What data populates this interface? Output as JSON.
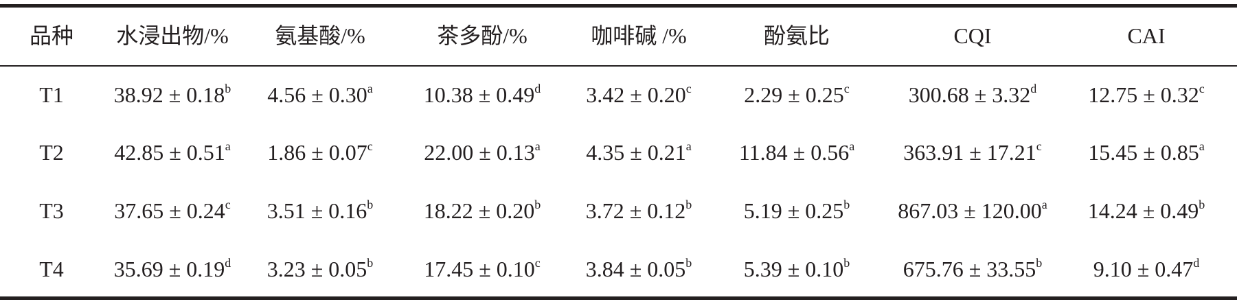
{
  "table": {
    "header": [
      "品种",
      "水浸出物/%",
      "氨基酸/%",
      "茶多酚/%",
      "咖啡碱 /%",
      "酚氨比",
      "CQI",
      "CAI"
    ],
    "rows": [
      {
        "label": "T1",
        "cells": [
          {
            "text": "38.92 ± 0.18",
            "sup": "b"
          },
          {
            "text": "4.56 ± 0.30",
            "sup": "a"
          },
          {
            "text": "10.38 ± 0.49",
            "sup": "d"
          },
          {
            "text": "3.42 ± 0.20",
            "sup": "c"
          },
          {
            "text": "2.29 ± 0.25",
            "sup": "c"
          },
          {
            "text": "300.68 ± 3.32",
            "sup": "d"
          },
          {
            "text": "12.75 ± 0.32",
            "sup": "c"
          }
        ]
      },
      {
        "label": "T2",
        "cells": [
          {
            "text": "42.85 ± 0.51",
            "sup": "a"
          },
          {
            "text": "1.86 ± 0.07",
            "sup": "c"
          },
          {
            "text": "22.00 ± 0.13",
            "sup": "a"
          },
          {
            "text": "4.35 ± 0.21",
            "sup": "a"
          },
          {
            "text": "11.84 ± 0.56",
            "sup": "a"
          },
          {
            "text": "363.91 ± 17.21",
            "sup": "c"
          },
          {
            "text": "15.45 ± 0.85",
            "sup": "a"
          }
        ]
      },
      {
        "label": "T3",
        "cells": [
          {
            "text": "37.65 ± 0.24",
            "sup": "c"
          },
          {
            "text": "3.51 ± 0.16",
            "sup": "b"
          },
          {
            "text": "18.22 ± 0.20",
            "sup": "b"
          },
          {
            "text": "3.72 ± 0.12",
            "sup": "b"
          },
          {
            "text": "5.19 ± 0.25",
            "sup": "b"
          },
          {
            "text": "867.03 ± 120.00",
            "sup": "a"
          },
          {
            "text": "14.24 ± 0.49",
            "sup": "b"
          }
        ]
      },
      {
        "label": "T4",
        "cells": [
          {
            "text": "35.69 ± 0.19",
            "sup": "d"
          },
          {
            "text": "3.23 ± 0.05",
            "sup": "b"
          },
          {
            "text": "17.45 ± 0.10",
            "sup": "c"
          },
          {
            "text": "3.84 ± 0.05",
            "sup": "b"
          },
          {
            "text": "5.39 ± 0.10",
            "sup": "b"
          },
          {
            "text": "675.76 ± 33.55",
            "sup": "b"
          },
          {
            "text": "9.10 ± 0.47",
            "sup": "d"
          }
        ]
      }
    ]
  }
}
